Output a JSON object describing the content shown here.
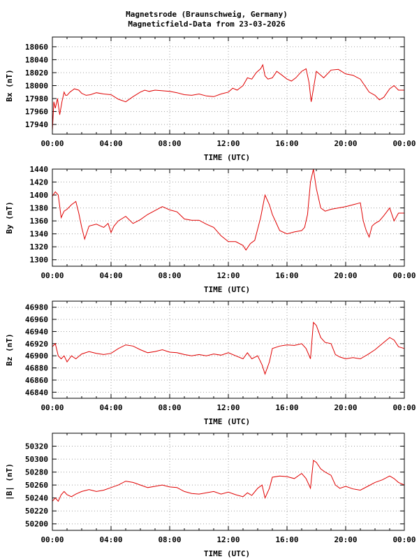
{
  "title_line1": "Magnetsrode (Braunschweig, Germany)",
  "title_line2": "Magneticfield-Data from 23-03-2026",
  "chart_data": [
    {
      "type": "line",
      "ylabel": "Bx (nT)",
      "xlabel": "TIME (UTC)",
      "ylim": [
        17925,
        18075
      ],
      "yticks": [
        17940,
        17960,
        17980,
        18000,
        18020,
        18040,
        18060
      ],
      "xticks": [
        "00:00",
        "04:00",
        "08:00",
        "12:00",
        "16:00",
        "20:00",
        "00:00"
      ],
      "grid": true,
      "color": "#e00000",
      "x": [
        0,
        0.1,
        0.2,
        0.35,
        0.5,
        0.65,
        0.8,
        0.9,
        1.0,
        1.2,
        1.5,
        1.8,
        2.0,
        2.3,
        2.6,
        3.0,
        3.5,
        4.0,
        4.5,
        5.0,
        5.5,
        6.0,
        6.3,
        6.6,
        7.0,
        7.5,
        8.0,
        8.5,
        9.0,
        9.5,
        10.0,
        10.5,
        11.0,
        11.5,
        12.0,
        12.3,
        12.6,
        13.0,
        13.3,
        13.6,
        13.9,
        14.2,
        14.35,
        14.5,
        14.7,
        15.0,
        15.3,
        15.6,
        16.0,
        16.3,
        16.6,
        17.0,
        17.3,
        17.5,
        17.65,
        17.8,
        18.0,
        18.2,
        18.5,
        19.0,
        19.5,
        20.0,
        20.5,
        21.0,
        21.3,
        21.6,
        22.0,
        22.3,
        22.6,
        23.0,
        23.3,
        23.6,
        24.0
      ],
      "values": [
        17930,
        17975,
        17965,
        17980,
        17955,
        17975,
        17990,
        17985,
        17985,
        17990,
        17995,
        17993,
        17988,
        17985,
        17986,
        17989,
        17987,
        17986,
        17979,
        17975,
        17983,
        17990,
        17993,
        17991,
        17993,
        17992,
        17991,
        17989,
        17986,
        17985,
        17987,
        17984,
        17983,
        17987,
        17990,
        17996,
        17993,
        18000,
        18012,
        18010,
        18020,
        18026,
        18032,
        18015,
        18010,
        18012,
        18022,
        18017,
        18010,
        18007,
        18012,
        18022,
        18026,
        18005,
        17975,
        17995,
        18022,
        18018,
        18012,
        18024,
        18025,
        18018,
        18016,
        18010,
        18000,
        17990,
        17985,
        17978,
        17982,
        17995,
        18000,
        17993,
        17993
      ]
    },
    {
      "type": "line",
      "ylabel": "By (nT)",
      "xlabel": "TIME (UTC)",
      "ylim": [
        1290,
        1440
      ],
      "yticks": [
        1300,
        1320,
        1340,
        1360,
        1380,
        1400,
        1420,
        1440
      ],
      "xticks": [
        "00:00",
        "04:00",
        "08:00",
        "12:00",
        "16:00",
        "20:00",
        "00:00"
      ],
      "grid": true,
      "color": "#e00000",
      "x": [
        0,
        0.2,
        0.4,
        0.6,
        0.8,
        1.0,
        1.3,
        1.6,
        1.8,
        2.0,
        2.2,
        2.5,
        3.0,
        3.5,
        3.8,
        4.0,
        4.2,
        4.5,
        5.0,
        5.5,
        6.0,
        6.5,
        7.0,
        7.5,
        8.0,
        8.5,
        9.0,
        9.5,
        10.0,
        10.5,
        11.0,
        11.5,
        12.0,
        12.5,
        13.0,
        13.2,
        13.5,
        13.8,
        14.2,
        14.5,
        14.8,
        15.0,
        15.5,
        16.0,
        16.5,
        17.0,
        17.2,
        17.4,
        17.6,
        17.8,
        18.0,
        18.3,
        18.6,
        19.0,
        19.5,
        20.0,
        20.5,
        21.0,
        21.2,
        21.4,
        21.6,
        21.8,
        22.0,
        22.3,
        22.6,
        23.0,
        23.3,
        23.6,
        24.0
      ],
      "values": [
        1398,
        1405,
        1400,
        1365,
        1375,
        1378,
        1385,
        1390,
        1372,
        1350,
        1332,
        1352,
        1355,
        1350,
        1356,
        1342,
        1352,
        1360,
        1367,
        1356,
        1362,
        1370,
        1376,
        1382,
        1377,
        1374,
        1363,
        1361,
        1361,
        1355,
        1350,
        1337,
        1328,
        1328,
        1322,
        1315,
        1325,
        1330,
        1365,
        1400,
        1385,
        1370,
        1345,
        1340,
        1343,
        1345,
        1350,
        1370,
        1420,
        1440,
        1410,
        1380,
        1375,
        1378,
        1380,
        1382,
        1385,
        1388,
        1360,
        1345,
        1335,
        1352,
        1356,
        1360,
        1368,
        1380,
        1360,
        1372,
        1372
      ]
    },
    {
      "type": "line",
      "ylabel": "Bz (nT)",
      "xlabel": "TIME (UTC)",
      "ylim": [
        46830,
        46990
      ],
      "yticks": [
        46840,
        46860,
        46880,
        46900,
        46920,
        46940,
        46960,
        46980
      ],
      "xticks": [
        "00:00",
        "04:00",
        "08:00",
        "12:00",
        "16:00",
        "20:00",
        "00:00"
      ],
      "grid": true,
      "color": "#e00000",
      "x": [
        0,
        0.2,
        0.4,
        0.6,
        0.8,
        1.0,
        1.3,
        1.6,
        2.0,
        2.5,
        3.0,
        3.5,
        4.0,
        4.5,
        5.0,
        5.5,
        6.0,
        6.5,
        7.0,
        7.5,
        8.0,
        8.5,
        9.0,
        9.5,
        10.0,
        10.5,
        11.0,
        11.5,
        12.0,
        12.5,
        13.0,
        13.3,
        13.6,
        14.0,
        14.3,
        14.5,
        14.8,
        15.0,
        15.5,
        16.0,
        16.5,
        17.0,
        17.3,
        17.6,
        17.8,
        18.0,
        18.3,
        18.6,
        19.0,
        19.3,
        19.6,
        20.0,
        20.5,
        21.0,
        21.5,
        22.0,
        22.5,
        23.0,
        23.3,
        23.6,
        24.0
      ],
      "values": [
        46915,
        46920,
        46900,
        46895,
        46900,
        46890,
        46900,
        46895,
        46903,
        46907,
        46904,
        46902,
        46904,
        46912,
        46918,
        46916,
        46910,
        46905,
        46907,
        46910,
        46906,
        46905,
        46902,
        46900,
        46902,
        46900,
        46903,
        46901,
        46905,
        46900,
        46895,
        46905,
        46895,
        46900,
        46885,
        46870,
        46890,
        46912,
        46916,
        46918,
        46917,
        46920,
        46912,
        46895,
        46955,
        46950,
        46930,
        46922,
        46920,
        46902,
        46898,
        46895,
        46897,
        46895,
        46902,
        46910,
        46920,
        46930,
        46926,
        46915,
        46912
      ]
    },
    {
      "type": "line",
      "ylabel": "|B| (nT)",
      "xlabel": "TIME (UTC)",
      "ylim": [
        50190,
        50340
      ],
      "yticks": [
        50200,
        50220,
        50240,
        50260,
        50280,
        50300,
        50320
      ],
      "xticks": [
        "00:00",
        "04:00",
        "08:00",
        "12:00",
        "16:00",
        "20:00",
        "00:00"
      ],
      "grid": true,
      "color": "#e00000",
      "x": [
        0,
        0.2,
        0.4,
        0.6,
        0.8,
        1.0,
        1.3,
        1.6,
        2.0,
        2.5,
        3.0,
        3.5,
        4.0,
        4.5,
        5.0,
        5.5,
        6.0,
        6.5,
        7.0,
        7.5,
        8.0,
        8.5,
        9.0,
        9.5,
        10.0,
        10.5,
        11.0,
        11.5,
        12.0,
        12.5,
        13.0,
        13.3,
        13.6,
        14.0,
        14.3,
        14.5,
        14.8,
        15.0,
        15.5,
        16.0,
        16.5,
        17.0,
        17.3,
        17.6,
        17.8,
        18.0,
        18.3,
        18.6,
        19.0,
        19.3,
        19.6,
        20.0,
        20.5,
        21.0,
        21.5,
        22.0,
        22.5,
        23.0,
        23.3,
        23.6,
        24.0
      ],
      "values": [
        50235,
        50240,
        50235,
        50245,
        50250,
        50245,
        50242,
        50246,
        50250,
        50253,
        50250,
        50252,
        50256,
        50260,
        50266,
        50264,
        50260,
        50256,
        50258,
        50260,
        50257,
        50256,
        50250,
        50247,
        50246,
        50248,
        50250,
        50246,
        50249,
        50245,
        50242,
        50248,
        50244,
        50255,
        50260,
        50240,
        50255,
        50272,
        50274,
        50273,
        50270,
        50278,
        50270,
        50255,
        50298,
        50295,
        50285,
        50280,
        50275,
        50260,
        50255,
        50258,
        50254,
        50252,
        50258,
        50264,
        50268,
        50274,
        50270,
        50264,
        50260
      ]
    }
  ]
}
